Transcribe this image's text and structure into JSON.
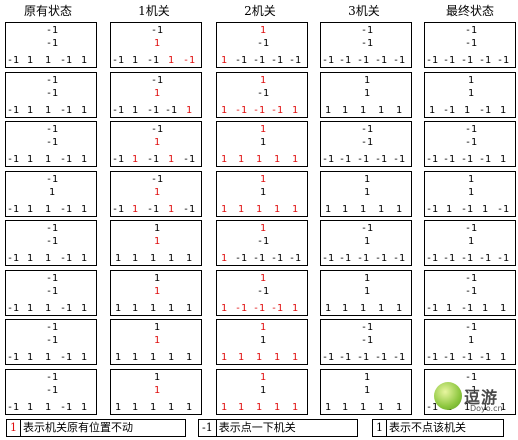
{
  "headers": [
    "原有状态",
    "1机关",
    "2机关",
    "3机关",
    "最终状态"
  ],
  "colors": {
    "changed": "#e01010",
    "normal": "#000000"
  },
  "rows": [
    {
      "cols": [
        {
          "t": [
            "-1",
            "-1"
          ],
          "b": [
            "-1",
            "1",
            "1",
            "-1",
            "1"
          ],
          "tr": [
            0,
            0
          ],
          "br": [
            0,
            0,
            0,
            0,
            0
          ]
        },
        {
          "t": [
            "-1",
            "1"
          ],
          "b": [
            "-1",
            "1",
            "-1",
            "1",
            "-1"
          ],
          "tr": [
            0,
            1
          ],
          "br": [
            0,
            0,
            0,
            1,
            1
          ]
        },
        {
          "t": [
            "1",
            "-1"
          ],
          "b": [
            "1",
            "-1",
            "-1",
            "-1",
            "-1"
          ],
          "tr": [
            1,
            0
          ],
          "br": [
            1,
            0,
            0,
            0,
            0
          ]
        },
        {
          "t": [
            "-1",
            "-1"
          ],
          "b": [
            "-1",
            "-1",
            "-1",
            "-1",
            "-1"
          ],
          "tr": [
            0,
            0
          ],
          "br": [
            0,
            0,
            0,
            0,
            0
          ]
        },
        {
          "t": [
            "-1",
            "-1"
          ],
          "b": [
            "-1",
            "-1",
            "-1",
            "-1",
            "-1"
          ],
          "tr": [
            0,
            0
          ],
          "br": [
            0,
            0,
            0,
            0,
            0
          ]
        }
      ]
    },
    {
      "cols": [
        {
          "t": [
            "-1",
            "-1"
          ],
          "b": [
            "-1",
            "1",
            "1",
            "-1",
            "1"
          ],
          "tr": [
            0,
            0
          ],
          "br": [
            0,
            0,
            0,
            0,
            0
          ]
        },
        {
          "t": [
            "-1",
            "1"
          ],
          "b": [
            "-1",
            "1",
            "-1",
            "-1",
            "1"
          ],
          "tr": [
            0,
            1
          ],
          "br": [
            0,
            0,
            0,
            0,
            1
          ]
        },
        {
          "t": [
            "1",
            "-1"
          ],
          "b": [
            "1",
            "-1",
            "-1",
            "-1",
            "1"
          ],
          "tr": [
            1,
            0
          ],
          "br": [
            1,
            1,
            1,
            1,
            1
          ]
        },
        {
          "t": [
            "1",
            "1"
          ],
          "b": [
            "1",
            "1",
            "1",
            "1",
            "1"
          ],
          "tr": [
            0,
            0
          ],
          "br": [
            0,
            0,
            0,
            0,
            0
          ]
        },
        {
          "t": [
            "1",
            "1"
          ],
          "b": [
            "1",
            "-1",
            "1",
            "-1",
            "1"
          ],
          "tr": [
            0,
            0
          ],
          "br": [
            0,
            0,
            0,
            0,
            0
          ]
        }
      ]
    },
    {
      "cols": [
        {
          "t": [
            "-1",
            "-1"
          ],
          "b": [
            "-1",
            "1",
            "1",
            "-1",
            "1"
          ],
          "tr": [
            0,
            0
          ],
          "br": [
            0,
            0,
            0,
            0,
            0
          ]
        },
        {
          "t": [
            "-1",
            "1"
          ],
          "b": [
            "-1",
            "1",
            "-1",
            "1",
            "-1"
          ],
          "tr": [
            0,
            1
          ],
          "br": [
            0,
            1,
            0,
            1,
            0
          ]
        },
        {
          "t": [
            "1",
            "1"
          ],
          "b": [
            "1",
            "1",
            "1",
            "1",
            "1"
          ],
          "tr": [
            1,
            0
          ],
          "br": [
            1,
            1,
            1,
            1,
            1
          ]
        },
        {
          "t": [
            "-1",
            "-1"
          ],
          "b": [
            "-1",
            "-1",
            "-1",
            "-1",
            "-1"
          ],
          "tr": [
            0,
            0
          ],
          "br": [
            0,
            0,
            0,
            0,
            0
          ]
        },
        {
          "t": [
            "-1",
            "-1"
          ],
          "b": [
            "-1",
            "-1",
            "-1",
            "-1",
            "1"
          ],
          "tr": [
            0,
            0
          ],
          "br": [
            0,
            0,
            0,
            0,
            0
          ]
        }
      ]
    },
    {
      "cols": [
        {
          "t": [
            "-1",
            "1"
          ],
          "b": [
            "-1",
            "1",
            "1",
            "-1",
            "1"
          ],
          "tr": [
            0,
            0
          ],
          "br": [
            0,
            0,
            0,
            0,
            0
          ]
        },
        {
          "t": [
            "-1",
            "1"
          ],
          "b": [
            "-1",
            "1",
            "-1",
            "1",
            "-1"
          ],
          "tr": [
            0,
            1
          ],
          "br": [
            0,
            1,
            0,
            1,
            0
          ]
        },
        {
          "t": [
            "1",
            "1"
          ],
          "b": [
            "1",
            "1",
            "1",
            "1",
            "1"
          ],
          "tr": [
            1,
            0
          ],
          "br": [
            1,
            1,
            1,
            1,
            1
          ]
        },
        {
          "t": [
            "1",
            "1"
          ],
          "b": [
            "1",
            "1",
            "1",
            "1",
            "1"
          ],
          "tr": [
            0,
            0
          ],
          "br": [
            0,
            0,
            0,
            0,
            0
          ]
        },
        {
          "t": [
            "1",
            "1"
          ],
          "b": [
            "-1",
            "1",
            "-1",
            "1",
            "-1"
          ],
          "tr": [
            0,
            0
          ],
          "br": [
            0,
            0,
            0,
            0,
            0
          ]
        }
      ]
    },
    {
      "cols": [
        {
          "t": [
            "-1",
            "-1"
          ],
          "b": [
            "-1",
            "1",
            "1",
            "-1",
            "1"
          ],
          "tr": [
            0,
            0
          ],
          "br": [
            0,
            0,
            0,
            0,
            0
          ]
        },
        {
          "t": [
            "1",
            "1"
          ],
          "b": [
            "1",
            "1",
            "1",
            "1",
            "1"
          ],
          "tr": [
            0,
            1
          ],
          "br": [
            0,
            0,
            0,
            0,
            0
          ]
        },
        {
          "t": [
            "1",
            "-1"
          ],
          "b": [
            "1",
            "-1",
            "-1",
            "-1",
            "-1"
          ],
          "tr": [
            1,
            0
          ],
          "br": [
            1,
            0,
            0,
            0,
            0
          ]
        },
        {
          "t": [
            "-1",
            "1"
          ],
          "b": [
            "-1",
            "-1",
            "-1",
            "-1",
            "-1"
          ],
          "tr": [
            0,
            0
          ],
          "br": [
            0,
            0,
            0,
            0,
            0
          ]
        },
        {
          "t": [
            "-1",
            "1"
          ],
          "b": [
            "-1",
            "-1",
            "-1",
            "-1",
            "-1"
          ],
          "tr": [
            0,
            0
          ],
          "br": [
            0,
            0,
            0,
            0,
            0
          ]
        }
      ]
    },
    {
      "cols": [
        {
          "t": [
            "-1",
            "-1"
          ],
          "b": [
            "-1",
            "1",
            "1",
            "-1",
            "1"
          ],
          "tr": [
            0,
            0
          ],
          "br": [
            0,
            0,
            0,
            0,
            0
          ]
        },
        {
          "t": [
            "1",
            "1"
          ],
          "b": [
            "1",
            "1",
            "1",
            "1",
            "1"
          ],
          "tr": [
            0,
            1
          ],
          "br": [
            0,
            0,
            0,
            0,
            0
          ]
        },
        {
          "t": [
            "1",
            "-1"
          ],
          "b": [
            "1",
            "-1",
            "-1",
            "-1",
            "1"
          ],
          "tr": [
            1,
            0
          ],
          "br": [
            1,
            1,
            1,
            1,
            1
          ]
        },
        {
          "t": [
            "1",
            "1"
          ],
          "b": [
            "1",
            "1",
            "1",
            "1",
            "1"
          ],
          "tr": [
            0,
            0
          ],
          "br": [
            0,
            0,
            0,
            0,
            0
          ]
        },
        {
          "t": [
            "-1",
            "-1"
          ],
          "b": [
            "-1",
            "1",
            "-1",
            "1",
            "1"
          ],
          "tr": [
            0,
            0
          ],
          "br": [
            0,
            0,
            0,
            0,
            0
          ]
        }
      ]
    },
    {
      "cols": [
        {
          "t": [
            "-1",
            "-1"
          ],
          "b": [
            "-1",
            "1",
            "1",
            "-1",
            "1"
          ],
          "tr": [
            0,
            0
          ],
          "br": [
            0,
            0,
            0,
            0,
            0
          ]
        },
        {
          "t": [
            "1",
            "1"
          ],
          "b": [
            "1",
            "1",
            "1",
            "1",
            "1"
          ],
          "tr": [
            0,
            1
          ],
          "br": [
            0,
            0,
            0,
            0,
            0
          ]
        },
        {
          "t": [
            "1",
            "1"
          ],
          "b": [
            "1",
            "1",
            "1",
            "1",
            "1"
          ],
          "tr": [
            1,
            0
          ],
          "br": [
            1,
            1,
            1,
            1,
            1
          ]
        },
        {
          "t": [
            "-1",
            "-1"
          ],
          "b": [
            "-1",
            "-1",
            "-1",
            "-1",
            "-1"
          ],
          "tr": [
            0,
            0
          ],
          "br": [
            0,
            0,
            0,
            0,
            0
          ]
        },
        {
          "t": [
            "-1",
            "1"
          ],
          "b": [
            "-1",
            "-1",
            "-1",
            "-1",
            "1"
          ],
          "tr": [
            0,
            0
          ],
          "br": [
            0,
            0,
            0,
            0,
            0
          ]
        }
      ]
    },
    {
      "cols": [
        {
          "t": [
            "-1",
            "-1"
          ],
          "b": [
            "-1",
            "1",
            "1",
            "-1",
            "1"
          ],
          "tr": [
            0,
            0
          ],
          "br": [
            0,
            0,
            0,
            0,
            0
          ]
        },
        {
          "t": [
            "1",
            "1"
          ],
          "b": [
            "1",
            "1",
            "1",
            "1",
            "1"
          ],
          "tr": [
            0,
            1
          ],
          "br": [
            0,
            0,
            0,
            0,
            0
          ]
        },
        {
          "t": [
            "1",
            "1"
          ],
          "b": [
            "1",
            "1",
            "1",
            "1",
            "1"
          ],
          "tr": [
            1,
            0
          ],
          "br": [
            1,
            1,
            1,
            1,
            1
          ]
        },
        {
          "t": [
            "1",
            "1"
          ],
          "b": [
            "1",
            "1",
            "1",
            "1",
            "1"
          ],
          "tr": [
            0,
            0
          ],
          "br": [
            0,
            0,
            0,
            0,
            0
          ]
        },
        {
          "t": [
            "-1",
            "-1"
          ],
          "b": [
            "-1",
            "1",
            "1",
            "1",
            "1"
          ],
          "tr": [
            0,
            0
          ],
          "br": [
            0,
            0,
            0,
            0,
            0
          ]
        }
      ]
    }
  ],
  "legend": [
    {
      "swatch": "1",
      "swatch_red": true,
      "text": "表示机关原有位置不动"
    },
    {
      "swatch": "-1",
      "swatch_red": false,
      "text": "表示点一下机关"
    },
    {
      "swatch": "1",
      "swatch_red": false,
      "text": "表示不点该机关"
    }
  ],
  "watermark": {
    "text": "逗游",
    "sub": "Doyo.cn"
  }
}
